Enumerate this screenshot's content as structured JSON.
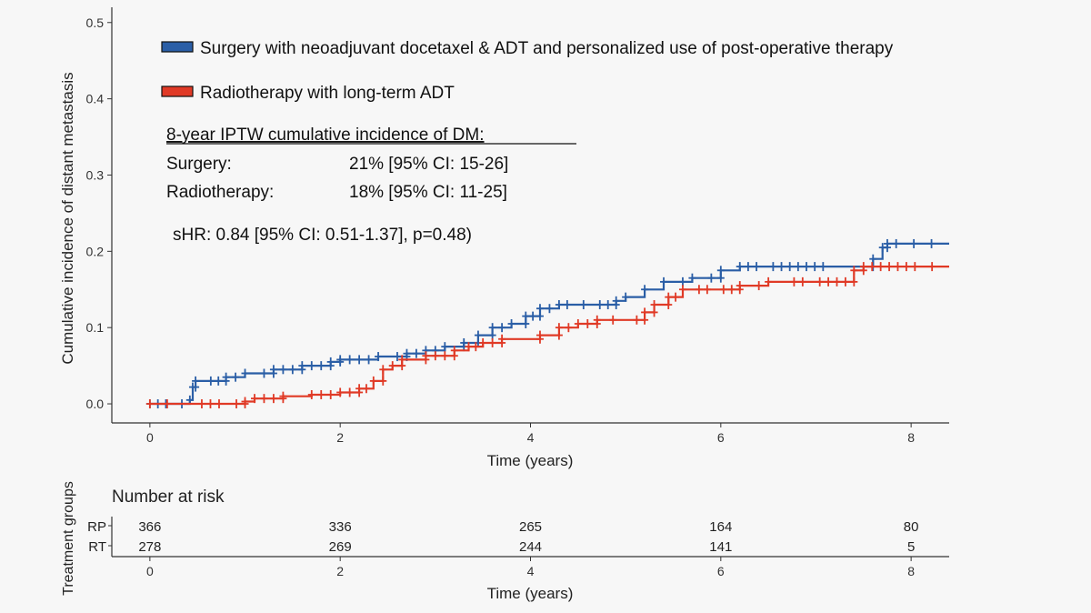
{
  "chart_data": {
    "type": "line",
    "ylabel": "Cumulative incidence of distant metastasis",
    "xlabel": "Time (years)",
    "xlim": [
      -0.4,
      8.4
    ],
    "ylim": [
      -0.025,
      0.52
    ],
    "x_ticks": [
      "0",
      "2",
      "4",
      "6",
      "8"
    ],
    "y_ticks": [
      "0.0",
      "0.1",
      "0.2",
      "0.3",
      "0.4",
      "0.5"
    ],
    "grid": false,
    "legend_position": "top",
    "series": [
      {
        "name": "Surgery with neoadjuvant docetaxel & ADT and personalized use of post-operative therapy",
        "color": "#2a5ea6",
        "points": [
          [
            0,
            0
          ],
          [
            0.42,
            0
          ],
          [
            0.42,
            0.005
          ],
          [
            0.45,
            0.005
          ],
          [
            0.45,
            0.022
          ],
          [
            0.48,
            0.022
          ],
          [
            0.48,
            0.03
          ],
          [
            0.8,
            0.03
          ],
          [
            0.8,
            0.035
          ],
          [
            1.0,
            0.035
          ],
          [
            1.0,
            0.04
          ],
          [
            1.3,
            0.04
          ],
          [
            1.3,
            0.045
          ],
          [
            1.6,
            0.045
          ],
          [
            1.6,
            0.05
          ],
          [
            1.9,
            0.05
          ],
          [
            1.9,
            0.055
          ],
          [
            2.0,
            0.055
          ],
          [
            2.0,
            0.058
          ],
          [
            2.4,
            0.058
          ],
          [
            2.4,
            0.062
          ],
          [
            2.7,
            0.062
          ],
          [
            2.7,
            0.066
          ],
          [
            2.9,
            0.066
          ],
          [
            2.9,
            0.07
          ],
          [
            3.1,
            0.07
          ],
          [
            3.1,
            0.075
          ],
          [
            3.3,
            0.075
          ],
          [
            3.3,
            0.08
          ],
          [
            3.45,
            0.08
          ],
          [
            3.45,
            0.09
          ],
          [
            3.6,
            0.09
          ],
          [
            3.6,
            0.1
          ],
          [
            3.8,
            0.1
          ],
          [
            3.8,
            0.105
          ],
          [
            3.95,
            0.105
          ],
          [
            3.95,
            0.115
          ],
          [
            4.1,
            0.115
          ],
          [
            4.1,
            0.125
          ],
          [
            4.3,
            0.125
          ],
          [
            4.3,
            0.13
          ],
          [
            4.9,
            0.13
          ],
          [
            4.9,
            0.135
          ],
          [
            5.0,
            0.135
          ],
          [
            5.0,
            0.14
          ],
          [
            5.2,
            0.14
          ],
          [
            5.2,
            0.15
          ],
          [
            5.4,
            0.15
          ],
          [
            5.4,
            0.16
          ],
          [
            5.7,
            0.16
          ],
          [
            5.7,
            0.165
          ],
          [
            6.0,
            0.165
          ],
          [
            6.0,
            0.175
          ],
          [
            6.2,
            0.175
          ],
          [
            6.2,
            0.18
          ],
          [
            7.6,
            0.18
          ],
          [
            7.6,
            0.19
          ],
          [
            7.7,
            0.19
          ],
          [
            7.7,
            0.205
          ],
          [
            7.75,
            0.205
          ],
          [
            7.75,
            0.21
          ],
          [
            8.4,
            0.21
          ]
        ]
      },
      {
        "name": "Radiotherapy with long-term ADT",
        "color": "#e03a26",
        "points": [
          [
            0,
            0
          ],
          [
            1.0,
            0
          ],
          [
            1.0,
            0.003
          ],
          [
            1.1,
            0.003
          ],
          [
            1.1,
            0.007
          ],
          [
            1.4,
            0.007
          ],
          [
            1.4,
            0.01
          ],
          [
            1.7,
            0.01
          ],
          [
            1.7,
            0.012
          ],
          [
            2.0,
            0.012
          ],
          [
            2.0,
            0.015
          ],
          [
            2.2,
            0.015
          ],
          [
            2.2,
            0.02
          ],
          [
            2.35,
            0.02
          ],
          [
            2.35,
            0.03
          ],
          [
            2.45,
            0.03
          ],
          [
            2.45,
            0.045
          ],
          [
            2.55,
            0.045
          ],
          [
            2.55,
            0.05
          ],
          [
            2.65,
            0.05
          ],
          [
            2.65,
            0.058
          ],
          [
            2.9,
            0.058
          ],
          [
            2.9,
            0.063
          ],
          [
            3.2,
            0.063
          ],
          [
            3.2,
            0.07
          ],
          [
            3.35,
            0.07
          ],
          [
            3.35,
            0.075
          ],
          [
            3.5,
            0.075
          ],
          [
            3.5,
            0.08
          ],
          [
            3.7,
            0.08
          ],
          [
            3.7,
            0.085
          ],
          [
            4.1,
            0.085
          ],
          [
            4.1,
            0.09
          ],
          [
            4.3,
            0.09
          ],
          [
            4.3,
            0.1
          ],
          [
            4.5,
            0.1
          ],
          [
            4.5,
            0.105
          ],
          [
            4.7,
            0.105
          ],
          [
            4.7,
            0.11
          ],
          [
            5.2,
            0.11
          ],
          [
            5.2,
            0.12
          ],
          [
            5.3,
            0.12
          ],
          [
            5.3,
            0.13
          ],
          [
            5.45,
            0.13
          ],
          [
            5.45,
            0.14
          ],
          [
            5.6,
            0.14
          ],
          [
            5.6,
            0.15
          ],
          [
            6.2,
            0.15
          ],
          [
            6.2,
            0.155
          ],
          [
            6.5,
            0.155
          ],
          [
            6.5,
            0.16
          ],
          [
            7.4,
            0.16
          ],
          [
            7.4,
            0.175
          ],
          [
            7.5,
            0.175
          ],
          [
            7.5,
            0.18
          ],
          [
            8.4,
            0.18
          ]
        ]
      }
    ],
    "annotations": {
      "header": "8-year IPTW cumulative incidence of DM:",
      "rows": [
        {
          "label": "Surgery:",
          "value": "21% [95% CI: 15-26]"
        },
        {
          "label": "Radiotherapy:",
          "value": "18% [95% CI: 11-25]"
        }
      ],
      "shr": "sHR: 0.84 [95% CI: 0.51-1.37], p=0.48)"
    }
  },
  "risk_table": {
    "title": "Number at risk",
    "ylabel": "Treatment groups",
    "xlabel": "Time (years)",
    "x_ticks": [
      "0",
      "2",
      "4",
      "6",
      "8"
    ],
    "rows": [
      {
        "label": "RP",
        "values": [
          "366",
          "336",
          "265",
          "164",
          "80"
        ]
      },
      {
        "label": "RT",
        "values": [
          "278",
          "269",
          "244",
          "141",
          "5"
        ]
      }
    ]
  }
}
